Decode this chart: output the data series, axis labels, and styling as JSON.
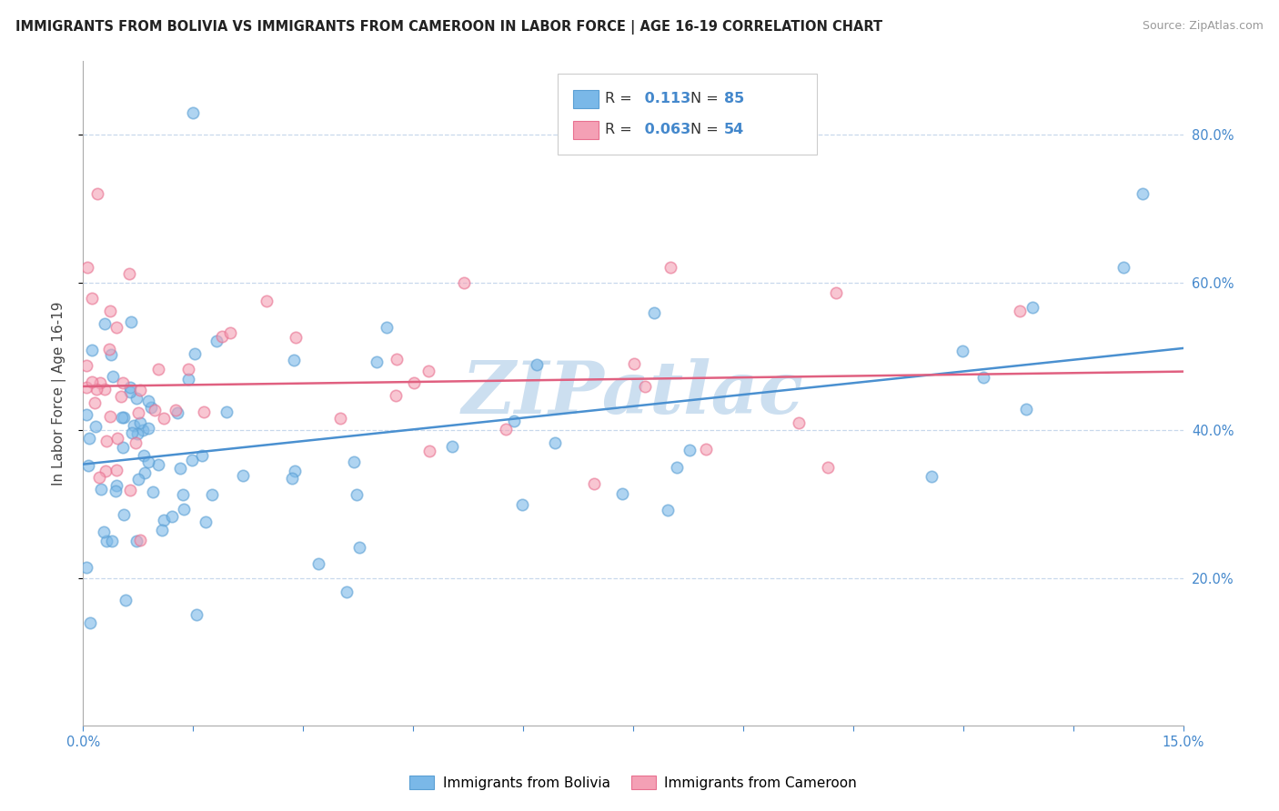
{
  "title": "IMMIGRANTS FROM BOLIVIA VS IMMIGRANTS FROM CAMEROON IN LABOR FORCE | AGE 16-19 CORRELATION CHART",
  "source": "Source: ZipAtlas.com",
  "ylabel": "In Labor Force | Age 16-19",
  "bolivia_R": 0.113,
  "bolivia_N": 85,
  "cameroon_R": 0.063,
  "cameroon_N": 54,
  "bolivia_color": "#7ab8e8",
  "cameroon_color": "#f4a0b5",
  "bolivia_edge": "#5a9fd4",
  "cameroon_edge": "#e87090",
  "trend_bolivia": "#4a90d0",
  "trend_cameroon": "#e06080",
  "xlim": [
    0.0,
    0.15
  ],
  "ylim": [
    0.0,
    0.9
  ],
  "right_yticks": [
    0.2,
    0.4,
    0.6,
    0.8
  ],
  "xticks": [
    0.0,
    0.015,
    0.03,
    0.045,
    0.06,
    0.075,
    0.09,
    0.105,
    0.12,
    0.135,
    0.15
  ],
  "xtick_labels_show": [
    0.0,
    0.15
  ],
  "watermark": "ZIPatlас",
  "watermark_color": "#ccdff0",
  "background_color": "#ffffff",
  "grid_color": "#c8d8ec",
  "bolivia_legend": "Immigrants from Bolivia",
  "cameroon_legend": "Immigrants from Cameroon"
}
